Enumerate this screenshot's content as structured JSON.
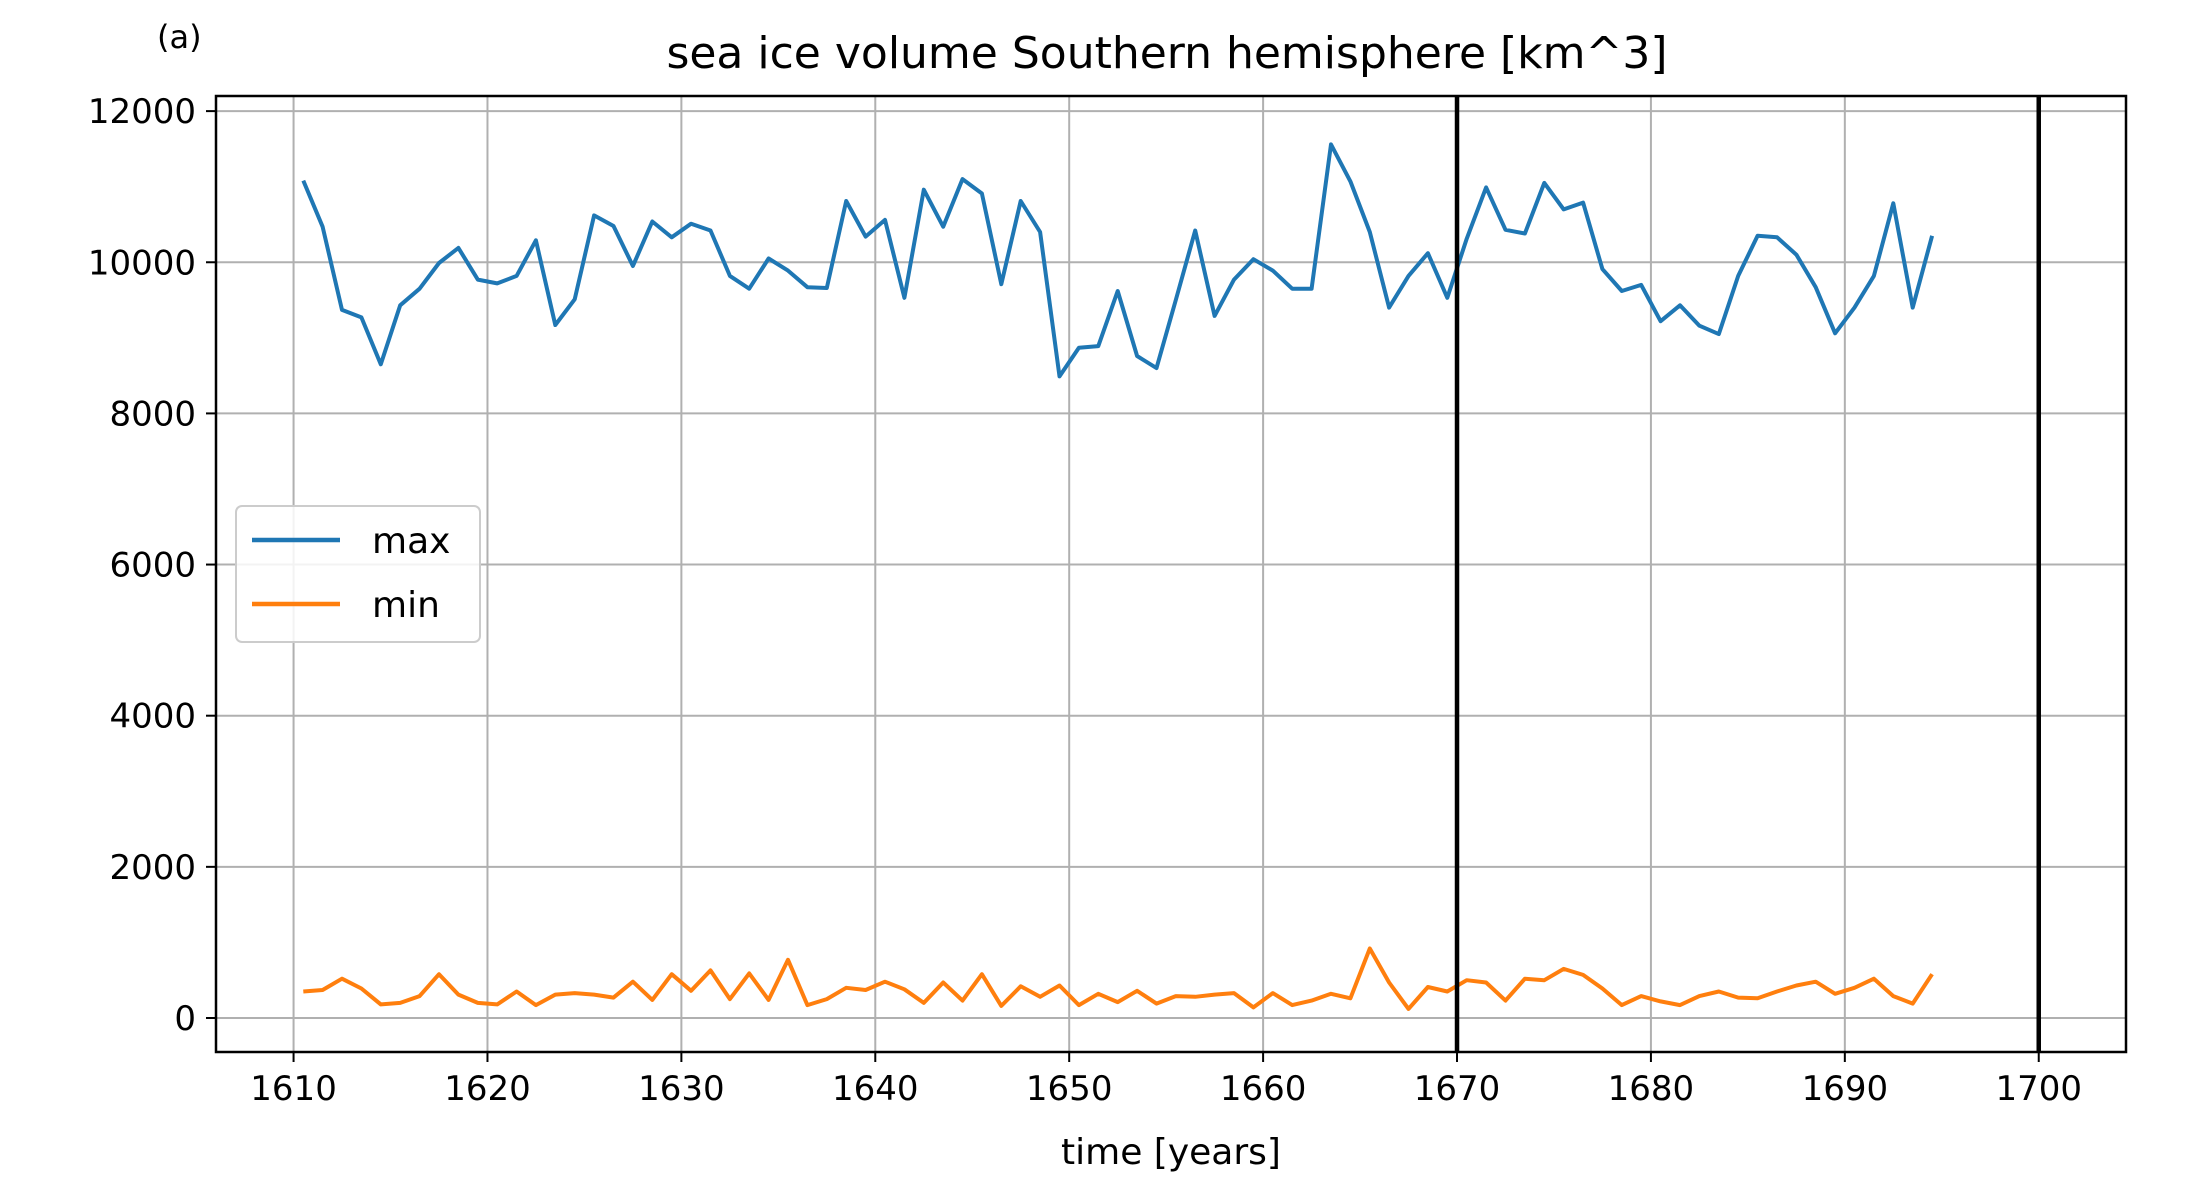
{
  "panel_label": "(a)",
  "chart_data": {
    "type": "line",
    "title": "sea ice volume Southern hemisphere [km^3]",
    "xlabel": "time [years]",
    "ylabel": "",
    "xlim": [
      1606,
      1704.5
    ],
    "ylim": [
      -450,
      12200
    ],
    "xticks": [
      1610,
      1620,
      1630,
      1640,
      1650,
      1660,
      1670,
      1680,
      1690,
      1700
    ],
    "yticks": [
      0,
      2000,
      4000,
      6000,
      8000,
      10000,
      12000
    ],
    "grid": true,
    "legend_placement": "center-left",
    "vlines": [
      1670,
      1700
    ],
    "vline_color": "#000000",
    "x": [
      1610.5,
      1611.5,
      1612.5,
      1613.5,
      1614.5,
      1615.5,
      1616.5,
      1617.5,
      1618.5,
      1619.5,
      1620.5,
      1621.5,
      1622.5,
      1623.5,
      1624.5,
      1625.5,
      1626.5,
      1627.5,
      1628.5,
      1629.5,
      1630.5,
      1631.5,
      1632.5,
      1633.5,
      1634.5,
      1635.5,
      1636.5,
      1637.5,
      1638.5,
      1639.5,
      1640.5,
      1641.5,
      1642.5,
      1643.5,
      1644.5,
      1645.5,
      1646.5,
      1647.5,
      1648.5,
      1649.5,
      1650.5,
      1651.5,
      1652.5,
      1653.5,
      1654.5,
      1655.5,
      1656.5,
      1657.5,
      1658.5,
      1659.5,
      1660.5,
      1661.5,
      1662.5,
      1663.5,
      1664.5,
      1665.5,
      1666.5,
      1667.5,
      1668.5,
      1669.5,
      1670.5,
      1671.5,
      1672.5,
      1673.5,
      1674.5,
      1675.5,
      1676.5,
      1677.5,
      1678.5,
      1679.5,
      1680.5,
      1681.5,
      1682.5,
      1683.5,
      1684.5,
      1685.5,
      1686.5,
      1687.5,
      1688.5,
      1689.5,
      1690.5,
      1691.5,
      1692.5,
      1693.5,
      1694.5
    ],
    "series": [
      {
        "name": "max",
        "color": "#1f77b4",
        "values": [
          11080,
          10470,
          9370,
          9270,
          8650,
          9430,
          9650,
          9990,
          10190,
          9770,
          9720,
          9820,
          10290,
          9170,
          9510,
          10620,
          10480,
          9950,
          10540,
          10330,
          10510,
          10420,
          9820,
          9650,
          10050,
          9890,
          9670,
          9660,
          10810,
          10340,
          10560,
          9530,
          10960,
          10470,
          11100,
          10910,
          9710,
          10810,
          10400,
          8490,
          8870,
          8890,
          9620,
          8760,
          8600,
          9500,
          10420,
          9290,
          9770,
          10040,
          9890,
          9650,
          9650,
          11560,
          11070,
          10400,
          9400,
          9820,
          10120,
          9530,
          10310,
          10990,
          10430,
          10380,
          11050,
          10700,
          10790,
          9910,
          9620,
          9700,
          9220,
          9430,
          9160,
          9050,
          9820,
          10350,
          10330,
          10100,
          9670,
          9060,
          9400,
          9820,
          10780,
          9400,
          10350
        ]
      },
      {
        "name": "min",
        "color": "#ff7f0e",
        "values": [
          350,
          370,
          520,
          390,
          180,
          200,
          290,
          580,
          310,
          200,
          180,
          350,
          170,
          310,
          330,
          310,
          270,
          480,
          240,
          580,
          360,
          630,
          250,
          590,
          240,
          770,
          170,
          250,
          400,
          370,
          480,
          380,
          200,
          470,
          230,
          580,
          160,
          420,
          280,
          430,
          170,
          320,
          210,
          360,
          190,
          290,
          280,
          310,
          330,
          140,
          330,
          170,
          230,
          320,
          260,
          920,
          470,
          120,
          410,
          350,
          500,
          470,
          230,
          520,
          500,
          650,
          570,
          390,
          170,
          290,
          220,
          170,
          290,
          350,
          270,
          260,
          350,
          430,
          480,
          320,
          400,
          520,
          290,
          190,
          580
        ]
      }
    ]
  }
}
